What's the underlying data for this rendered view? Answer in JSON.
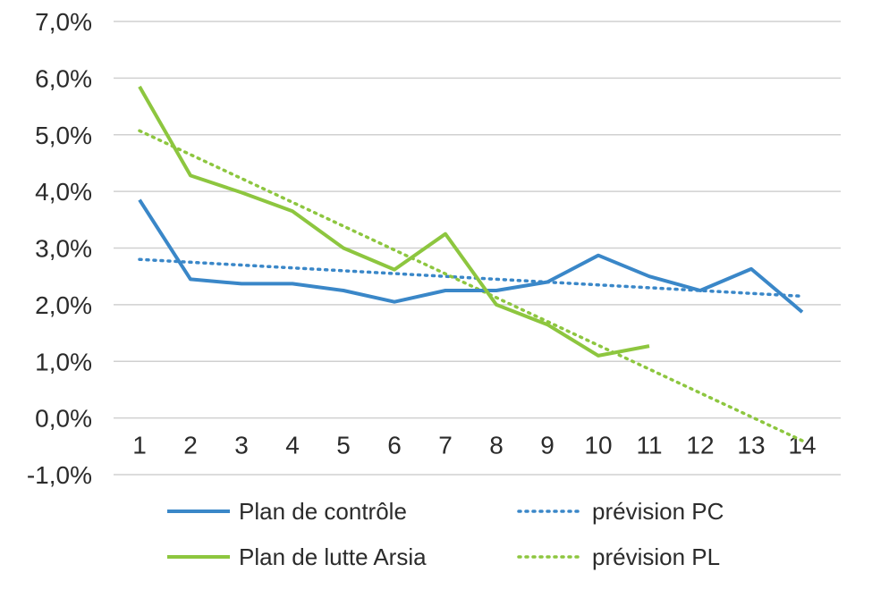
{
  "chart_data": {
    "type": "line",
    "x": [
      1,
      2,
      3,
      4,
      5,
      6,
      7,
      8,
      9,
      10,
      11,
      12,
      13,
      14
    ],
    "x_tick_labels": [
      "1",
      "2",
      "3",
      "4",
      "5",
      "6",
      "7",
      "8",
      "9",
      "10",
      "11",
      "12",
      "13",
      "14"
    ],
    "ylim": [
      -1.0,
      7.0
    ],
    "y_ticks": [
      -1.0,
      0.0,
      1.0,
      2.0,
      3.0,
      4.0,
      5.0,
      6.0,
      7.0
    ],
    "y_tick_labels": [
      "-1,0%",
      "0,0%",
      "1,0%",
      "2,0%",
      "3,0%",
      "4,0%",
      "5,0%",
      "6,0%",
      "7,0%"
    ],
    "grid": "horizontal",
    "legend_position": "bottom",
    "series": [
      {
        "name": "Plan de contrôle",
        "style": "solid",
        "color": "#3a87c8",
        "x": [
          1,
          2,
          3,
          4,
          5,
          6,
          7,
          8,
          9,
          10,
          11,
          12,
          13,
          14
        ],
        "values": [
          3.85,
          2.45,
          2.37,
          2.37,
          2.25,
          2.05,
          2.25,
          2.25,
          2.4,
          2.87,
          2.5,
          2.25,
          2.63,
          1.87
        ]
      },
      {
        "name": "prévision PC",
        "style": "dotted",
        "color": "#3a87c8",
        "x": [
          1,
          14
        ],
        "values": [
          2.8,
          2.15
        ]
      },
      {
        "name": "Plan de lutte Arsia",
        "style": "solid",
        "color": "#8dc63f",
        "x": [
          1,
          2,
          3,
          4,
          5,
          6,
          7,
          8,
          9,
          10,
          11
        ],
        "values": [
          5.85,
          4.28,
          3.98,
          3.65,
          3.0,
          2.62,
          3.25,
          2.0,
          1.65,
          1.1,
          1.27
        ]
      },
      {
        "name": "prévision PL",
        "style": "dotted",
        "color": "#8dc63f",
        "x": [
          1,
          14
        ],
        "values": [
          5.07,
          -0.4
        ]
      }
    ]
  }
}
